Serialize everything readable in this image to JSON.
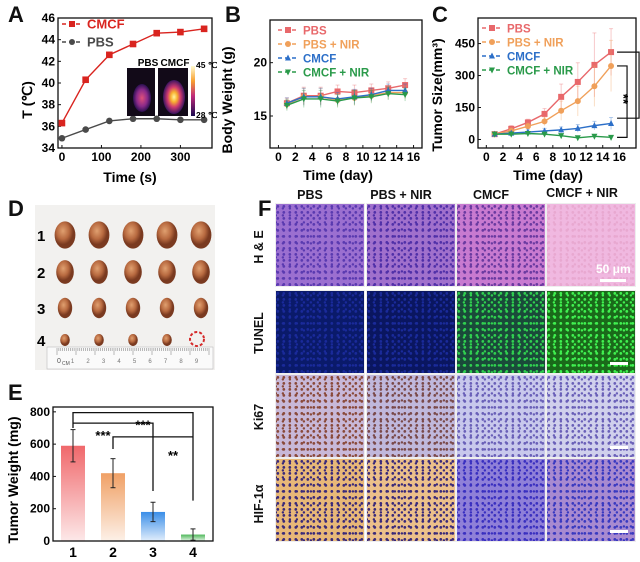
{
  "panels": {
    "A": {
      "letter": "A"
    },
    "B": {
      "letter": "B"
    },
    "C": {
      "letter": "C"
    },
    "D": {
      "letter": "D"
    },
    "E": {
      "letter": "E"
    },
    "F": {
      "letter": "F"
    }
  },
  "chart_data": [
    {
      "id": "A",
      "type": "line",
      "title": "",
      "xlabel": "Time (s)",
      "ylabel": "T (℃)",
      "xlim": [
        -10,
        380
      ],
      "ylim": [
        34,
        46
      ],
      "xticks": [
        0,
        100,
        200,
        300
      ],
      "yticks": [
        34,
        36,
        38,
        40,
        42,
        44,
        46
      ],
      "legend_position": "top-left",
      "series": [
        {
          "name": "CMCF",
          "color": "#d9241f",
          "marker": "square",
          "x": [
            0,
            60,
            120,
            180,
            240,
            300,
            360
          ],
          "y": [
            36.3,
            40.3,
            42.6,
            43.6,
            44.6,
            44.7,
            45.0
          ]
        },
        {
          "name": "PBS",
          "color": "#4a4a4a",
          "marker": "circle",
          "x": [
            0,
            60,
            120,
            180,
            240,
            300,
            360
          ],
          "y": [
            34.9,
            35.7,
            36.5,
            36.7,
            36.7,
            36.6,
            36.6
          ]
        }
      ],
      "inset": {
        "labels": [
          "PBS",
          "CMCF"
        ],
        "colorbar_max": "45 ℃",
        "colorbar_min": "28 ℃"
      }
    },
    {
      "id": "B",
      "type": "line",
      "title": "",
      "xlabel": "Time (day)",
      "ylabel": "Body Weight (g)",
      "xlim": [
        -1,
        17
      ],
      "ylim": [
        12,
        24
      ],
      "xticks": [
        0,
        2,
        4,
        6,
        8,
        10,
        12,
        14,
        16
      ],
      "yticks": [
        15,
        20
      ],
      "legend_position": "top-left",
      "series": [
        {
          "name": "PBS",
          "color": "#e8686b",
          "marker": "square",
          "x": [
            1,
            3,
            5,
            7,
            9,
            11,
            13,
            15
          ],
          "y": [
            16.2,
            16.9,
            16.9,
            17.3,
            17.2,
            17.4,
            17.6,
            17.9
          ],
          "err": [
            0.5,
            0.8,
            0.8,
            0.6,
            0.7,
            0.6,
            0.6,
            0.6
          ]
        },
        {
          "name": "PBS + NIR",
          "color": "#f0a05a",
          "marker": "circle",
          "x": [
            1,
            3,
            5,
            7,
            9,
            11,
            13,
            15
          ],
          "y": [
            16.1,
            16.8,
            16.8,
            16.5,
            16.7,
            16.9,
            17.2,
            17.2
          ],
          "err": [
            0.5,
            0.8,
            0.8,
            0.6,
            0.7,
            0.6,
            0.6,
            0.6
          ]
        },
        {
          "name": "CMCF",
          "color": "#2c6fc8",
          "marker": "triangle-up",
          "x": [
            1,
            3,
            5,
            7,
            9,
            11,
            13,
            15
          ],
          "y": [
            16.2,
            16.8,
            16.8,
            16.6,
            16.8,
            17.0,
            17.4,
            17.4
          ],
          "err": [
            0.5,
            0.8,
            0.8,
            0.6,
            0.7,
            0.6,
            0.6,
            0.6
          ]
        },
        {
          "name": "CMCF + NIR",
          "color": "#2a9a4a",
          "marker": "triangle-down",
          "x": [
            1,
            3,
            5,
            7,
            9,
            11,
            13,
            15
          ],
          "y": [
            16.0,
            16.6,
            16.6,
            16.4,
            16.7,
            16.8,
            17.1,
            17.0
          ],
          "err": [
            0.5,
            0.8,
            0.8,
            0.6,
            0.7,
            0.6,
            0.6,
            0.6
          ]
        }
      ]
    },
    {
      "id": "C",
      "type": "line",
      "title": "",
      "xlabel": "Time (day)",
      "ylabel": "Tumor Size(mm³)",
      "xlim": [
        -1,
        18
      ],
      "ylim": [
        -40,
        570
      ],
      "xticks": [
        0,
        2,
        4,
        6,
        8,
        10,
        12,
        14,
        16
      ],
      "yticks": [
        0,
        150,
        300,
        450
      ],
      "legend_position": "top-left",
      "series": [
        {
          "name": "PBS",
          "color": "#e8686b",
          "marker": "square",
          "x": [
            1,
            3,
            5,
            7,
            9,
            11,
            13,
            15
          ],
          "y": [
            25,
            50,
            80,
            120,
            200,
            270,
            350,
            410
          ],
          "err": [
            8,
            15,
            15,
            25,
            60,
            90,
            150,
            110
          ]
        },
        {
          "name": "PBS + NIR",
          "color": "#f0a05a",
          "marker": "circle",
          "x": [
            1,
            3,
            5,
            7,
            9,
            11,
            13,
            15
          ],
          "y": [
            25,
            40,
            62,
            85,
            135,
            180,
            250,
            345
          ],
          "err": [
            8,
            15,
            15,
            20,
            45,
            70,
            95,
            120
          ]
        },
        {
          "name": "CMCF",
          "color": "#2c6fc8",
          "marker": "triangle-up",
          "x": [
            1,
            3,
            5,
            7,
            9,
            11,
            13,
            15
          ],
          "y": [
            25,
            30,
            35,
            40,
            45,
            52,
            65,
            75
          ],
          "err": [
            6,
            8,
            10,
            12,
            14,
            18,
            20,
            28
          ]
        },
        {
          "name": "CMCF + NIR",
          "color": "#2a9a4a",
          "marker": "triangle-down",
          "x": [
            1,
            3,
            5,
            7,
            9,
            11,
            13,
            15
          ],
          "y": [
            25,
            25,
            28,
            25,
            18,
            8,
            15,
            10
          ],
          "err": [
            6,
            6,
            8,
            8,
            8,
            6,
            6,
            6
          ]
        }
      ],
      "significance": [
        {
          "label": "**",
          "from": "PBS",
          "to": "CMCF + NIR"
        },
        {
          "label": "**",
          "from": "PBS + NIR",
          "to": "CMCF + NIR"
        }
      ]
    },
    {
      "id": "E",
      "type": "bar",
      "title": "",
      "xlabel": "",
      "ylabel": "Tumor Weight (mg)",
      "ylim": [
        0,
        830
      ],
      "yticks": [
        0,
        200,
        400,
        600,
        800
      ],
      "categories": [
        "1",
        "2",
        "3",
        "4"
      ],
      "values": [
        590,
        420,
        180,
        40
      ],
      "errors": [
        100,
        90,
        60,
        35
      ],
      "colors": [
        "#f0686b",
        "#f0a065",
        "#3a8ee8",
        "#4fb85a"
      ],
      "significance": [
        {
          "label": "***",
          "from": "1",
          "to": "4"
        },
        {
          "label": "***",
          "from": "1",
          "to": "3"
        },
        {
          "label": "**",
          "from": "2",
          "to": "4"
        }
      ]
    }
  ],
  "photo_D": {
    "row_labels": [
      "1",
      "2",
      "3",
      "4"
    ],
    "ruler_labels": [
      "0",
      "CM",
      "1",
      "2",
      "3",
      "4",
      "5",
      "6",
      "7",
      "8",
      "9"
    ]
  },
  "panel_F": {
    "columns": [
      "PBS",
      "PBS + NIR",
      "CMCF",
      "CMCF + NIR"
    ],
    "rows": [
      "H & E",
      "TUNEL",
      "Ki67",
      "HIF-1α"
    ],
    "scale_label": "50 μm"
  }
}
